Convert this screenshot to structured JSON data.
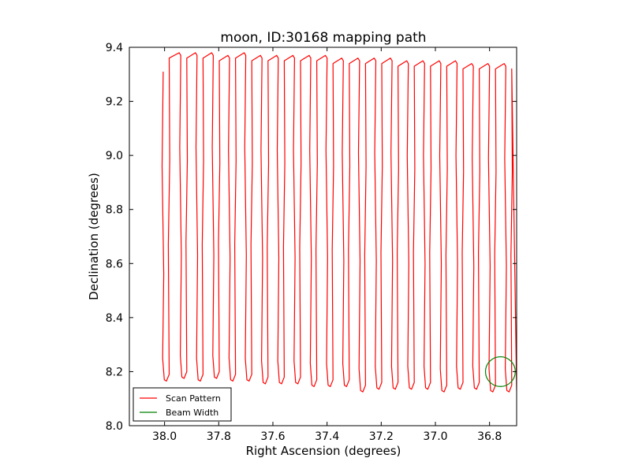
{
  "chart_data": {
    "type": "line",
    "title": "moon, ID:30168 mapping path",
    "xlabel": "Right Ascension (degrees)",
    "ylabel": "Declination (degrees)",
    "xlim": [
      38.13,
      36.7
    ],
    "ylim": [
      8.0,
      9.4
    ],
    "x_inverted": true,
    "xticks": [
      38.0,
      37.8,
      37.6,
      37.4,
      37.2,
      37.0,
      36.8
    ],
    "xtick_labels": [
      "38.0",
      "37.8",
      "37.6",
      "37.4",
      "37.2",
      "37.0",
      "36.8"
    ],
    "yticks": [
      8.0,
      8.2,
      8.4,
      8.6,
      8.8,
      9.0,
      9.2,
      9.4
    ],
    "ytick_labels": [
      "8.0",
      "8.2",
      "8.4",
      "8.6",
      "8.8",
      "9.0",
      "9.2",
      "9.4"
    ],
    "grid": false,
    "legend_position": "lower-left",
    "series": [
      {
        "name": "Scan Pattern",
        "color": "#ff0000",
        "scan_columns_ra": [
          38.005,
          37.94,
          37.88,
          37.82,
          37.76,
          37.7,
          37.64,
          37.58,
          37.52,
          37.46,
          37.4,
          37.34,
          37.28,
          37.22,
          37.16,
          37.1,
          37.04,
          36.98,
          36.92,
          36.86,
          36.8,
          36.74
        ],
        "top_dec": [
          9.31,
          9.38,
          9.38,
          9.38,
          9.37,
          9.38,
          9.37,
          9.37,
          9.37,
          9.37,
          9.37,
          9.36,
          9.36,
          9.36,
          9.36,
          9.35,
          9.35,
          9.35,
          9.35,
          9.34,
          9.34,
          9.34
        ],
        "bottom_dec": [
          8.17,
          8.18,
          8.17,
          8.18,
          8.17,
          8.17,
          8.16,
          8.16,
          8.16,
          8.15,
          8.15,
          8.15,
          8.13,
          8.14,
          8.14,
          8.14,
          8.14,
          8.13,
          8.14,
          8.14,
          8.13,
          8.13
        ]
      },
      {
        "name": "Beam Width",
        "color": "#008000",
        "center_ra": 36.76,
        "center_dec": 8.2,
        "diameter_deg": 0.11
      }
    ]
  }
}
